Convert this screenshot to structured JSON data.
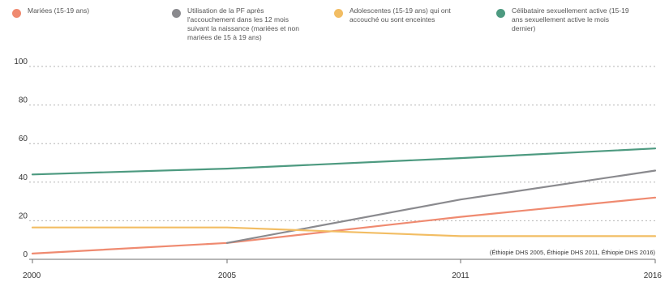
{
  "colors": {
    "married": "#ef8a70",
    "pf": "#8a8a8e",
    "adolescent": "#f2bd63",
    "single": "#4d9a80",
    "grid": "#b5b5b5",
    "axis": "#6e6e6e"
  },
  "chart_data": {
    "type": "line",
    "title": "",
    "xlabel": "",
    "ylabel": "",
    "x": [
      2000,
      2005,
      2011,
      2016
    ],
    "x_tick_labels": [
      "2000",
      "2005",
      "2011",
      "2016"
    ],
    "ylim": [
      0,
      100
    ],
    "y_ticks": [
      "0",
      "20",
      "40",
      "60",
      "80",
      "100"
    ],
    "grid": true,
    "legend_position": "top",
    "series": [
      {
        "name": "Mariées (15-19 ans)",
        "color_key": "married",
        "values": [
          3,
          8.5,
          22,
          32
        ]
      },
      {
        "name": "Utilisation de la PF après l'accouchement dans les 12 mois suivant la naissance (mariées et non mariées de 15 à 19 ans)",
        "color_key": "pf",
        "values": [
          null,
          8.5,
          31,
          46
        ]
      },
      {
        "name": "Adolescentes (15-19 ans) qui ont accouché ou sont enceintes",
        "color_key": "adolescent",
        "values": [
          16.5,
          16.5,
          12,
          12
        ]
      },
      {
        "name": "Célibataire sexuellement active (15-19 ans sexuellement active le mois dernier)",
        "color_key": "single",
        "values": [
          44,
          47,
          52.5,
          57.5
        ]
      }
    ],
    "source": "(Éthiopie DHS 2005, Éthiopie DHS 2011, Éthiopie DHS 2016)"
  }
}
